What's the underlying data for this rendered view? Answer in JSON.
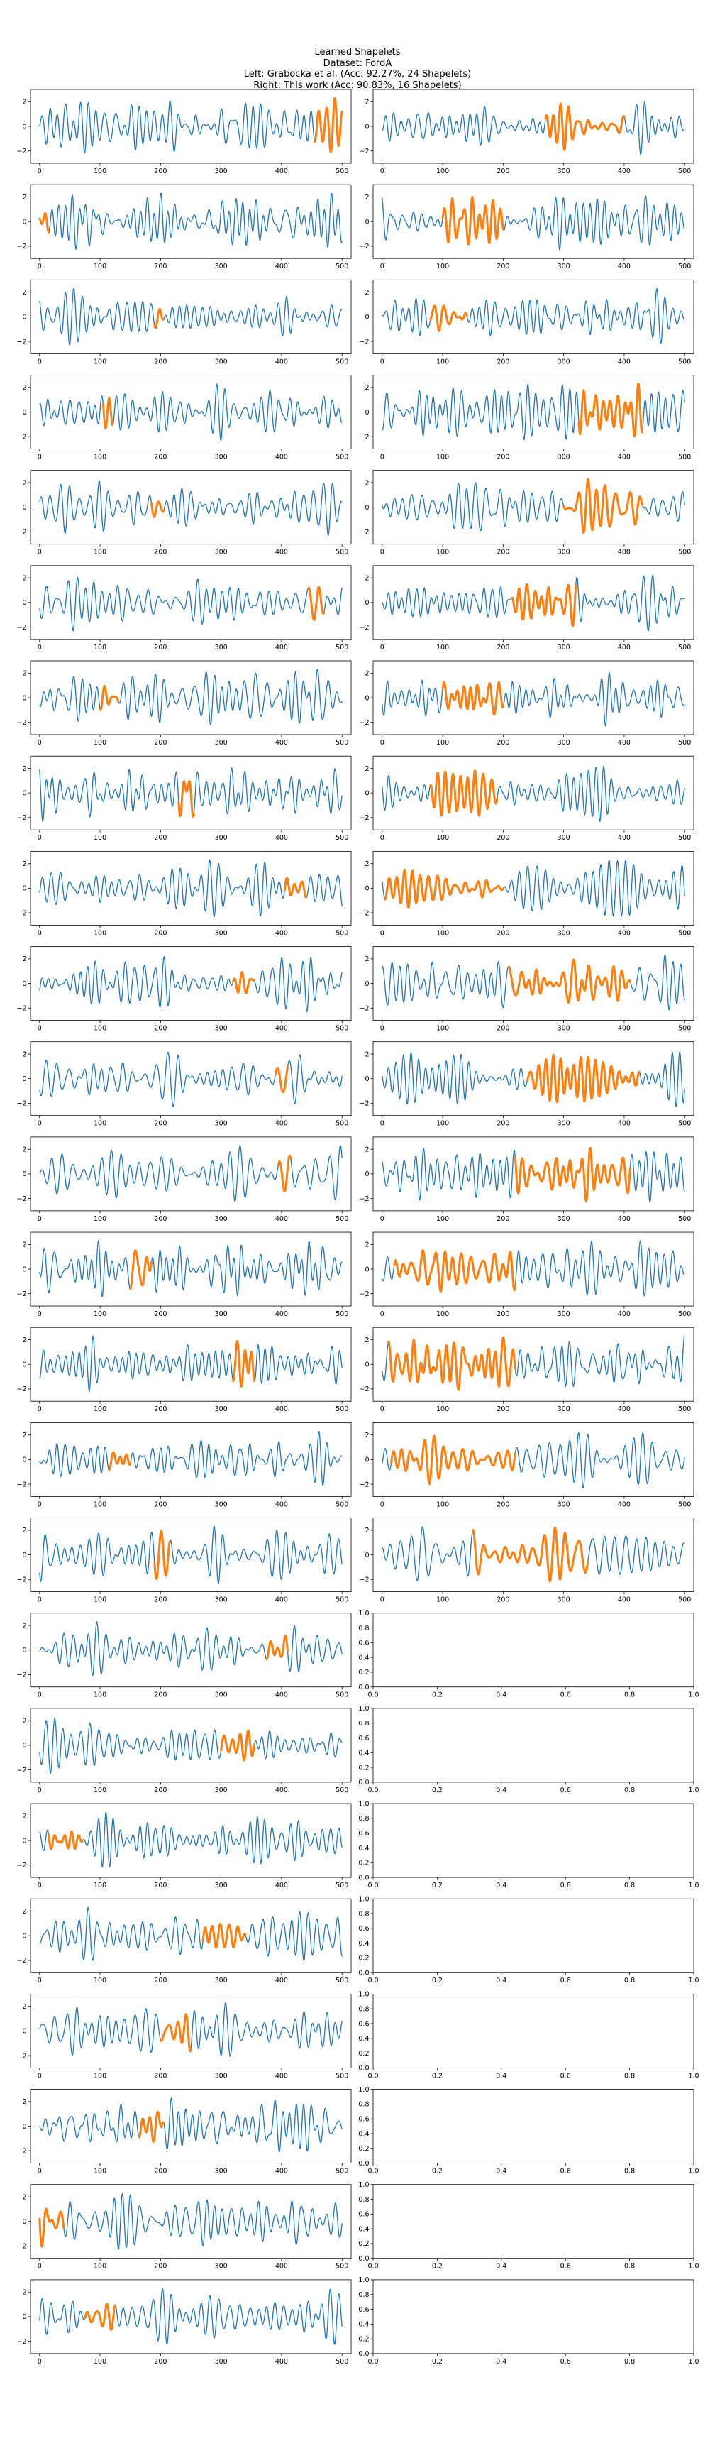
{
  "figure": {
    "title": "Learned Shapelets",
    "subtitle_dataset": "Dataset: FordA",
    "subtitle_left": "Left: Grabocka et al. (Acc: 92.27%, 24 Shapelets)",
    "subtitle_right": "Right: This work (Acc: 90.83%, 16 Shapelets)"
  },
  "colors": {
    "series": "#1f77b4",
    "shapelet": "#ff7f0e",
    "axis": "#000000"
  },
  "chart_data": {
    "type": "line",
    "layout": "24 rows x 2 columns of line subplots",
    "x_ticks": [
      0,
      100,
      200,
      300,
      400,
      500
    ],
    "x_tick_labels": [
      "0",
      "100",
      "200",
      "300",
      "400",
      "500"
    ],
    "y_ticks": [
      -2,
      0,
      2
    ],
    "y_tick_labels": [
      "−2",
      "0",
      "2"
    ],
    "empty_x_tick_labels": [
      "0.0",
      "0.2",
      "0.4",
      "0.6",
      "0.8",
      "1.0"
    ],
    "empty_y_tick_labels": [
      "0.0",
      "0.2",
      "0.4",
      "0.6",
      "0.8",
      "1.0"
    ],
    "series_length": 500,
    "ylim_approx": [
      -3,
      3
    ],
    "left_panels": [
      {
        "shapelet_x": [
          455,
          500
        ]
      },
      {
        "shapelet_x": [
          0,
          15
        ]
      },
      {
        "shapelet_x": [
          190,
          205
        ]
      },
      {
        "shapelet_x": [
          105,
          120
        ]
      },
      {
        "shapelet_x": [
          185,
          205
        ]
      },
      {
        "shapelet_x": [
          445,
          470
        ]
      },
      {
        "shapelet_x": [
          100,
          130
        ]
      },
      {
        "shapelet_x": [
          230,
          255
        ]
      },
      {
        "shapelet_x": [
          405,
          440
        ]
      },
      {
        "shapelet_x": [
          320,
          355
        ]
      },
      {
        "shapelet_x": [
          390,
          410
        ]
      },
      {
        "shapelet_x": [
          395,
          415
        ]
      },
      {
        "shapelet_x": [
          150,
          185
        ]
      },
      {
        "shapelet_x": [
          320,
          355
        ]
      },
      {
        "shapelet_x": [
          115,
          150
        ]
      },
      {
        "shapelet_x": [
          190,
          215
        ]
      },
      {
        "shapelet_x": [
          375,
          410
        ]
      },
      {
        "shapelet_x": [
          300,
          355
        ]
      },
      {
        "shapelet_x": [
          15,
          70
        ]
      },
      {
        "shapelet_x": [
          270,
          340
        ]
      },
      {
        "shapelet_x": [
          200,
          250
        ]
      },
      {
        "shapelet_x": [
          165,
          205
        ]
      },
      {
        "shapelet_x": [
          0,
          40
        ]
      },
      {
        "shapelet_x": [
          75,
          125
        ]
      }
    ],
    "right_panels": [
      {
        "shapelet_x": [
          270,
          400
        ],
        "empty": false
      },
      {
        "shapelet_x": [
          100,
          200
        ],
        "empty": false
      },
      {
        "shapelet_x": [
          80,
          140
        ],
        "empty": false
      },
      {
        "shapelet_x": [
          325,
          430
        ],
        "empty": false
      },
      {
        "shapelet_x": [
          300,
          430
        ],
        "empty": false
      },
      {
        "shapelet_x": [
          215,
          320
        ],
        "empty": false
      },
      {
        "shapelet_x": [
          100,
          200
        ],
        "empty": false
      },
      {
        "shapelet_x": [
          80,
          190
        ],
        "empty": false
      },
      {
        "shapelet_x": [
          5,
          200
        ],
        "empty": false
      },
      {
        "shapelet_x": [
          210,
          410
        ],
        "empty": false
      },
      {
        "shapelet_x": [
          240,
          425
        ],
        "empty": false
      },
      {
        "shapelet_x": [
          220,
          410
        ],
        "empty": false
      },
      {
        "shapelet_x": [
          20,
          220
        ],
        "empty": false
      },
      {
        "shapelet_x": [
          10,
          220
        ],
        "empty": false
      },
      {
        "shapelet_x": [
          15,
          220
        ],
        "empty": false
      },
      {
        "shapelet_x": [
          150,
          340
        ],
        "empty": false
      },
      {
        "empty": true
      },
      {
        "empty": true
      },
      {
        "empty": true
      },
      {
        "empty": true
      },
      {
        "empty": true
      },
      {
        "empty": true
      },
      {
        "empty": true
      },
      {
        "empty": true
      }
    ]
  }
}
